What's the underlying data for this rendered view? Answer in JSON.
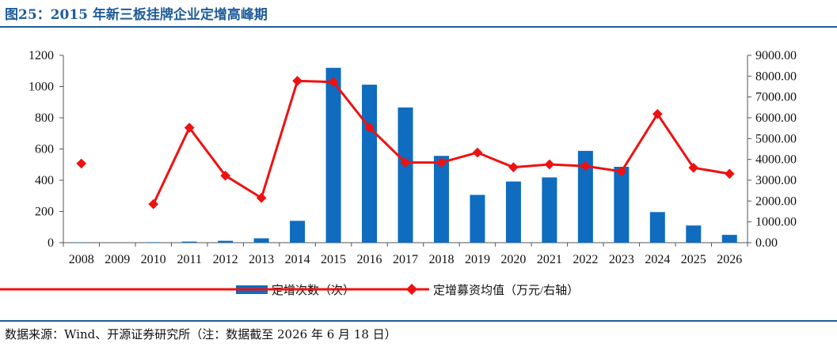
{
  "title": "图25：2015 年新三板挂牌企业定增高峰期",
  "source": "数据来源：Wind、开源证券研究所（注：数据截至 2026 年 6 月 18 日）",
  "colors": {
    "bar": "#0f6cbf",
    "line": "#ee1111",
    "title": "#1f5c99"
  },
  "chart_data": {
    "type": "bar",
    "categories": [
      "2008",
      "2009",
      "2010",
      "2011",
      "2012",
      "2013",
      "2014",
      "2015",
      "2016",
      "2017",
      "2018",
      "2019",
      "2020",
      "2021",
      "2022",
      "2023",
      "2024",
      "2025",
      "2026"
    ],
    "left_ticks": [
      "0",
      "200",
      "400",
      "600",
      "800",
      "1000",
      "1200"
    ],
    "right_ticks": [
      "0.00",
      "1000.00",
      "2000.00",
      "3000.00",
      "4000.00",
      "5000.00",
      "6000.00",
      "7000.00",
      "8000.00",
      "9000.00"
    ],
    "ylim": [
      0,
      1200
    ],
    "y2lim": [
      0,
      9000
    ],
    "grid": false,
    "legend_position": "bottom",
    "series": [
      {
        "name": "定增次数（次）",
        "type": "bar",
        "axis": "left",
        "values": [
          2,
          0,
          3,
          7,
          12,
          28,
          140,
          1120,
          1012,
          866,
          556,
          306,
          392,
          418,
          588,
          486,
          196,
          110,
          50
        ]
      },
      {
        "name": "定增募资均值（万元/右轴）",
        "type": "line",
        "axis": "right",
        "values": [
          3800,
          null,
          1850,
          5520,
          3220,
          2150,
          7770,
          7720,
          5530,
          3850,
          3850,
          4330,
          3620,
          3760,
          3680,
          3420,
          6180,
          3600,
          3310
        ]
      }
    ]
  }
}
